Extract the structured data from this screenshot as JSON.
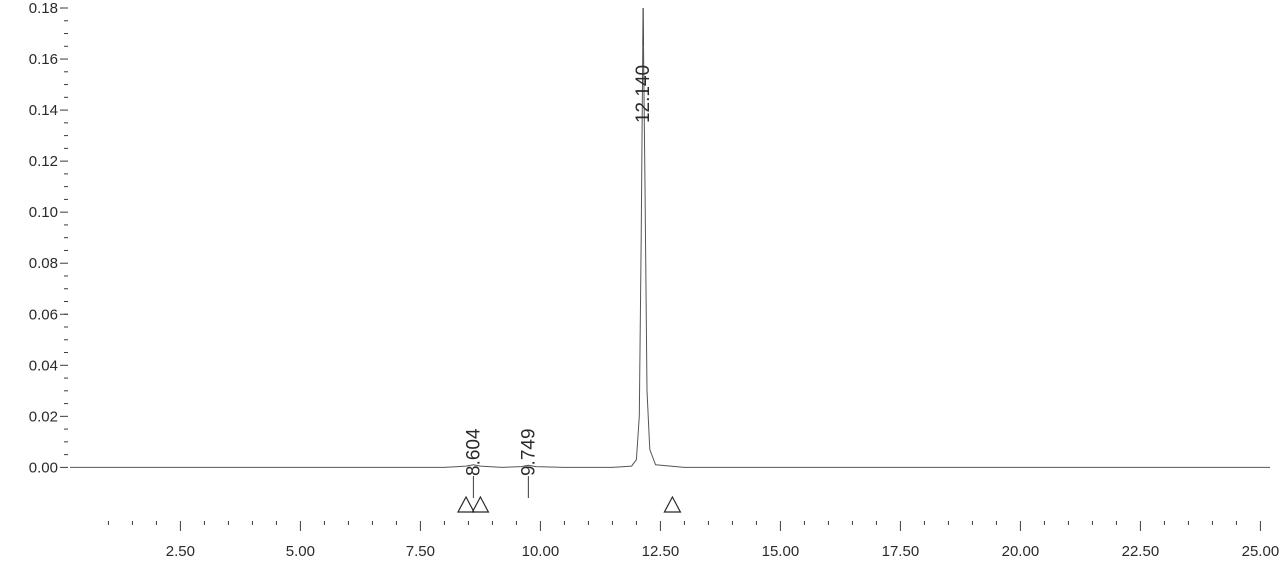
{
  "chart_data": {
    "type": "line",
    "x_ticks": [
      "2.50",
      "5.00",
      "7.50",
      "10.00",
      "12.50",
      "15.00",
      "17.50",
      "20.00",
      "22.50",
      "25.00"
    ],
    "y_ticks": [
      "0.00",
      "0.02",
      "0.04",
      "0.06",
      "0.08",
      "0.10",
      "0.12",
      "0.14",
      "0.16",
      "0.18"
    ],
    "xlim": [
      0.2,
      25.2
    ],
    "ylim": [
      -0.012,
      0.18
    ],
    "series": [
      {
        "x": [
          0.2,
          5.0,
          8.0,
          8.45,
          8.604,
          8.75,
          9.2,
          9.6,
          9.749,
          9.9,
          10.5,
          11.5,
          11.9,
          12.0,
          12.06,
          12.1,
          12.14,
          12.18,
          12.22,
          12.28,
          12.4,
          13.0,
          18.0,
          25.2
        ],
        "y": [
          0.0,
          0.0,
          0.0,
          0.0005,
          0.001,
          0.0005,
          0.0,
          0.0003,
          0.0008,
          0.0003,
          0.0,
          0.0,
          0.0005,
          0.003,
          0.02,
          0.09,
          0.18,
          0.11,
          0.03,
          0.007,
          0.001,
          0.0,
          0.0,
          0.0
        ]
      }
    ],
    "peaks": [
      {
        "label": "8.604",
        "x": 8.604,
        "y": 0.001
      },
      {
        "label": "9.749",
        "x": 9.749,
        "y": 0.0008
      },
      {
        "label": "12.140",
        "x": 12.14,
        "y": 0.18
      }
    ],
    "integration_markers": [
      8.45,
      8.75,
      12.75
    ],
    "grid": false,
    "title": "",
    "xlabel": "",
    "ylabel": ""
  }
}
